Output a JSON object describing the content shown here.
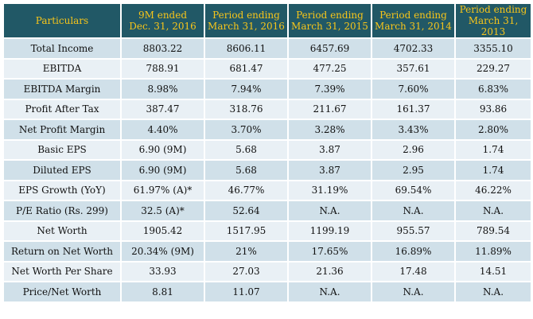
{
  "table": {
    "headers": [
      {
        "line1": "Particulars",
        "line2": ""
      },
      {
        "line1": "9M ended",
        "line2": "Dec. 31, 2016"
      },
      {
        "line1": "Period ending",
        "line2": "March 31, 2016"
      },
      {
        "line1": "Period ending",
        "line2": "March 31, 2015"
      },
      {
        "line1": "Period ending",
        "line2": "March 31, 2014"
      },
      {
        "line1": "Period ending",
        "line2": "March 31, 2013"
      }
    ],
    "rows": [
      [
        "Total Income",
        "8803.22",
        "8606.11",
        "6457.69",
        "4702.33",
        "3355.10"
      ],
      [
        "EBITDA",
        "788.91",
        "681.47",
        "477.25",
        "357.61",
        "229.27"
      ],
      [
        "EBITDA Margin",
        "8.98%",
        "7.94%",
        "7.39%",
        "7.60%",
        "6.83%"
      ],
      [
        "Profit After Tax",
        "387.47",
        "318.76",
        "211.67",
        "161.37",
        "93.86"
      ],
      [
        "Net Profit Margin",
        "4.40%",
        "3.70%",
        "3.28%",
        "3.43%",
        "2.80%"
      ],
      [
        "Basic EPS",
        "6.90 (9M)",
        "5.68",
        "3.87",
        "2.96",
        "1.74"
      ],
      [
        "Diluted EPS",
        "6.90 (9M)",
        "5.68",
        "3.87",
        "2.95",
        "1.74"
      ],
      [
        "EPS Growth (YoY)",
        "61.97% (A)*",
        "46.77%",
        "31.19%",
        "69.54%",
        "46.22%"
      ],
      [
        "P/E Ratio (Rs. 299)",
        "32.5 (A)*",
        "52.64",
        "N.A.",
        "N.A.",
        "N.A."
      ],
      [
        "Net Worth",
        "1905.42",
        "1517.95",
        "1199.19",
        "955.57",
        "789.54"
      ],
      [
        "Return on Net Worth",
        "20.34% (9M)",
        "21%",
        "17.65%",
        "16.89%",
        "11.89%"
      ],
      [
        "Net Worth Per Share",
        "33.93",
        "27.03",
        "21.36",
        "17.48",
        "14.51"
      ],
      [
        "Price/Net Worth",
        "8.81",
        "11.07",
        "N.A.",
        "N.A.",
        "N.A."
      ]
    ]
  }
}
